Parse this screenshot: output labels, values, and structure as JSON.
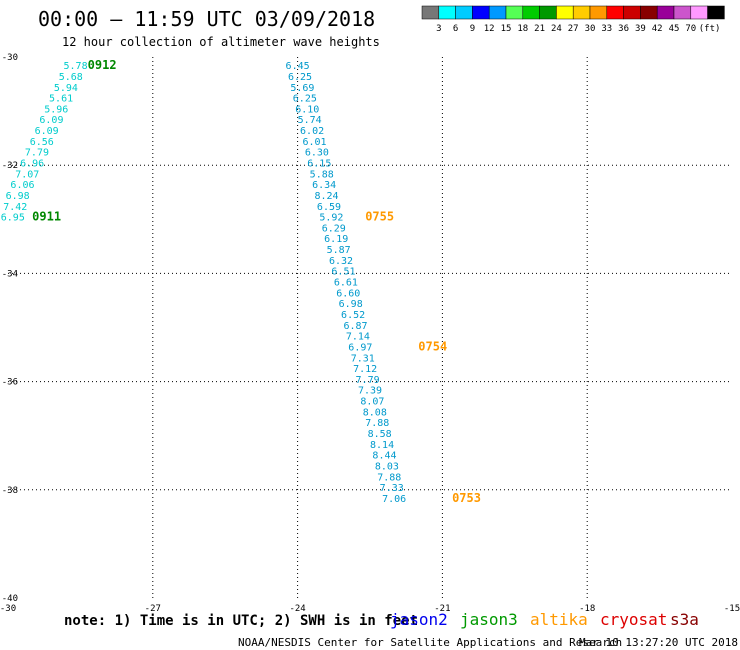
{
  "title": "00:00 – 11:59 UTC 03/09/2018",
  "subtitle": "12 hour collection of altimeter wave heights",
  "colorbar": {
    "unit": "(ft)",
    "colors": [
      "#777777",
      "#00ffff",
      "#00ccff",
      "#0000ff",
      "#0099ff",
      "#55ff55",
      "#00cc00",
      "#009900",
      "#ffff00",
      "#ffcc00",
      "#ff9900",
      "#ff0000",
      "#cc0000",
      "#880000",
      "#990099",
      "#cc55cc",
      "#ff99ff",
      "#000000"
    ],
    "labels": [
      "3",
      "6",
      "9",
      "12",
      "15",
      "18",
      "21",
      "24",
      "27",
      "30",
      "33",
      "36",
      "39",
      "42",
      "45",
      "70"
    ]
  },
  "note": "note: 1) Time is in UTC; 2) SWH is in feet",
  "satellites": [
    {
      "name": "jason2",
      "color": "#0000ee"
    },
    {
      "name": "jason3",
      "color": "#009900"
    },
    {
      "name": "altika",
      "color": "#ff9900"
    },
    {
      "name": "cryosat",
      "color": "#dd0000"
    },
    {
      "name": "s3a",
      "color": "#880000"
    }
  ],
  "footer": "NOAA/NESDIS Center for Satellite Applications and Research",
  "timestamp": "Mar 10 13:27:20 UTC 2018",
  "chart_data": {
    "type": "scatter",
    "xlim": [
      -30,
      -15
    ],
    "ylim": [
      -40,
      -30
    ],
    "x_ticks": [
      "-30",
      "-27",
      "-24",
      "-21",
      "-18",
      "-15"
    ],
    "y_ticks": [
      "-30",
      "-32",
      "-34",
      "-36",
      "-38",
      "-40"
    ],
    "grid": "dotted",
    "series": [
      {
        "name": "jason3",
        "color": "#00cccc",
        "points": [
          {
            "x": -28.6,
            "y": -30.15,
            "v": "5.78"
          },
          {
            "x": -28.7,
            "y": -30.35,
            "v": "5.68"
          },
          {
            "x": -28.8,
            "y": -30.55,
            "v": "5.94"
          },
          {
            "x": -28.9,
            "y": -30.75,
            "v": "5.61"
          },
          {
            "x": -29.0,
            "y": -30.95,
            "v": "5.96"
          },
          {
            "x": -29.1,
            "y": -31.15,
            "v": "6.09"
          },
          {
            "x": -29.2,
            "y": -31.35,
            "v": "6.09"
          },
          {
            "x": -29.3,
            "y": -31.55,
            "v": "6.56"
          },
          {
            "x": -29.4,
            "y": -31.75,
            "v": "7.79"
          },
          {
            "x": -29.5,
            "y": -31.95,
            "v": "6.96"
          },
          {
            "x": -29.6,
            "y": -32.15,
            "v": "7.07"
          },
          {
            "x": -29.7,
            "y": -32.35,
            "v": "6.06"
          },
          {
            "x": -29.8,
            "y": -32.55,
            "v": "6.98"
          },
          {
            "x": -29.85,
            "y": -32.75,
            "v": "7.42"
          },
          {
            "x": -29.9,
            "y": -32.95,
            "v": "6.95"
          }
        ],
        "time_labels": [
          {
            "x": -28.05,
            "y": -30.15,
            "v": "0912"
          },
          {
            "x": -29.2,
            "y": -32.95,
            "v": "0911"
          }
        ]
      },
      {
        "name": "altika",
        "color": "#0099cc",
        "points": [
          {
            "x": -24.0,
            "y": -30.15,
            "v": "6.45"
          },
          {
            "x": -23.95,
            "y": -30.35,
            "v": "6.25"
          },
          {
            "x": -23.9,
            "y": -30.55,
            "v": "5.69"
          },
          {
            "x": -23.85,
            "y": -30.75,
            "v": "6.25"
          },
          {
            "x": -23.8,
            "y": -30.95,
            "v": "6.10"
          },
          {
            "x": -23.75,
            "y": -31.15,
            "v": "5.74"
          },
          {
            "x": -23.7,
            "y": -31.35,
            "v": "6.02"
          },
          {
            "x": -23.65,
            "y": -31.55,
            "v": "6.01"
          },
          {
            "x": -23.6,
            "y": -31.75,
            "v": "6.30"
          },
          {
            "x": -23.55,
            "y": -31.95,
            "v": "6.15"
          },
          {
            "x": -23.5,
            "y": -32.15,
            "v": "5.88"
          },
          {
            "x": -23.45,
            "y": -32.35,
            "v": "6.34"
          },
          {
            "x": -23.4,
            "y": -32.55,
            "v": "8.24"
          },
          {
            "x": -23.35,
            "y": -32.75,
            "v": "6.59"
          },
          {
            "x": -23.3,
            "y": -32.95,
            "v": "5.92"
          },
          {
            "x": -23.25,
            "y": -33.15,
            "v": "6.29"
          },
          {
            "x": -23.2,
            "y": -33.35,
            "v": "6.19"
          },
          {
            "x": -23.15,
            "y": -33.55,
            "v": "5.87"
          },
          {
            "x": -23.1,
            "y": -33.75,
            "v": "6.32"
          },
          {
            "x": -23.05,
            "y": -33.95,
            "v": "6.51"
          },
          {
            "x": -23.0,
            "y": -34.15,
            "v": "6.61"
          },
          {
            "x": -22.95,
            "y": -34.35,
            "v": "6.60"
          },
          {
            "x": -22.9,
            "y": -34.55,
            "v": "6.98"
          },
          {
            "x": -22.85,
            "y": -34.75,
            "v": "6.52"
          },
          {
            "x": -22.8,
            "y": -34.95,
            "v": "6.87"
          },
          {
            "x": -22.75,
            "y": -35.15,
            "v": "7.14"
          },
          {
            "x": -22.7,
            "y": -35.35,
            "v": "6.97"
          },
          {
            "x": -22.65,
            "y": -35.55,
            "v": "7.31"
          },
          {
            "x": -22.6,
            "y": -35.75,
            "v": "7.12"
          },
          {
            "x": -22.55,
            "y": -35.95,
            "v": "7.79"
          },
          {
            "x": -22.5,
            "y": -36.15,
            "v": "7.39"
          },
          {
            "x": -22.45,
            "y": -36.35,
            "v": "8.07"
          },
          {
            "x": -22.4,
            "y": -36.55,
            "v": "8.08"
          },
          {
            "x": -22.35,
            "y": -36.75,
            "v": "7.88"
          },
          {
            "x": -22.3,
            "y": -36.95,
            "v": "8.58"
          },
          {
            "x": -22.25,
            "y": -37.15,
            "v": "8.14"
          },
          {
            "x": -22.2,
            "y": -37.35,
            "v": "8.44"
          },
          {
            "x": -22.15,
            "y": -37.55,
            "v": "8.03"
          },
          {
            "x": -22.1,
            "y": -37.75,
            "v": "7.88"
          },
          {
            "x": -22.05,
            "y": -37.95,
            "v": "7.33"
          },
          {
            "x": -22.0,
            "y": -38.15,
            "v": "7.06"
          }
        ],
        "time_labels": [
          {
            "x": -22.3,
            "y": -32.95,
            "v": "0755"
          },
          {
            "x": -21.2,
            "y": -35.35,
            "v": "0754"
          },
          {
            "x": -20.5,
            "y": -38.15,
            "v": "0753"
          }
        ]
      }
    ]
  }
}
